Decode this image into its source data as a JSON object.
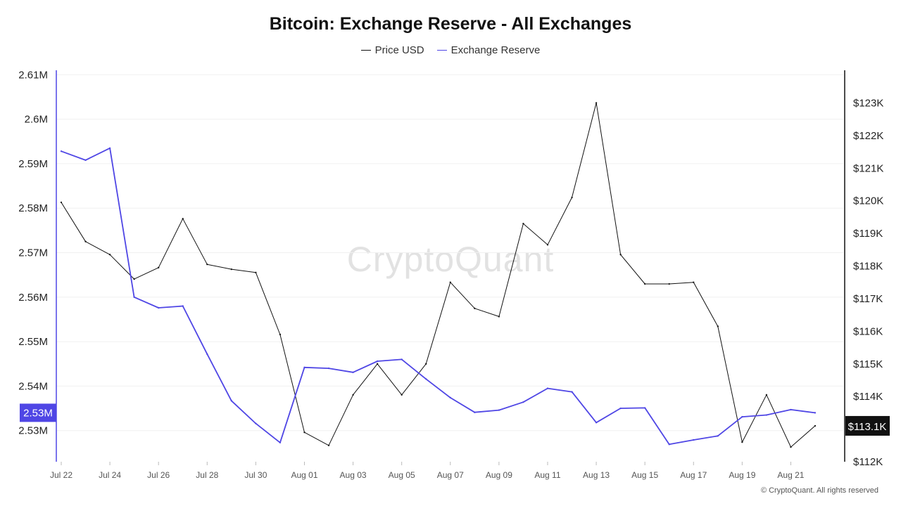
{
  "chart_data": {
    "type": "line",
    "title": "Bitcoin: Exchange Reserve - All Exchanges",
    "x": [
      "Jul 22",
      "Jul 23",
      "Jul 24",
      "Jul 25",
      "Jul 26",
      "Jul 27",
      "Jul 28",
      "Jul 29",
      "Jul 30",
      "Jul 31",
      "Aug 01",
      "Aug 02",
      "Aug 03",
      "Aug 04",
      "Aug 05",
      "Aug 06",
      "Aug 07",
      "Aug 08",
      "Aug 09",
      "Aug 10",
      "Aug 11",
      "Aug 12",
      "Aug 13",
      "Aug 14",
      "Aug 15",
      "Aug 16",
      "Aug 17",
      "Aug 18",
      "Aug 19",
      "Aug 20",
      "Aug 21",
      "Aug 22"
    ],
    "x_tick_labels": [
      "Jul 22",
      "Jul 24",
      "Jul 26",
      "Jul 28",
      "Jul 30",
      "Aug 01",
      "Aug 03",
      "Aug 05",
      "Aug 07",
      "Aug 09",
      "Aug 11",
      "Aug 13",
      "Aug 15",
      "Aug 17",
      "Aug 19",
      "Aug 21"
    ],
    "series": [
      {
        "name": "Price USD",
        "axis": "right",
        "color": "#111111",
        "values": [
          119950,
          118750,
          118350,
          117600,
          117950,
          119450,
          118050,
          117900,
          117800,
          115900,
          112900,
          112500,
          114050,
          115000,
          114050,
          115000,
          117500,
          116700,
          116450,
          119300,
          118650,
          120100,
          123000,
          118350,
          117450,
          117450,
          117500,
          116150,
          112600,
          114050,
          112450,
          113100
        ]
      },
      {
        "name": "Exchange Reserve",
        "axis": "left",
        "color": "#4f46e5",
        "values": [
          2592800,
          2590800,
          2593500,
          2560000,
          2557600,
          2558000,
          2547200,
          2536700,
          2531600,
          2527300,
          2544200,
          2544000,
          2543100,
          2545600,
          2546000,
          2541600,
          2537400,
          2534100,
          2534600,
          2536400,
          2539500,
          2538700,
          2531800,
          2535000,
          2535100,
          2526900,
          2527900,
          2528800,
          2533100,
          2533500,
          2534700,
          2534000
        ]
      }
    ],
    "y_left": {
      "ylim": [
        2523000,
        2611000
      ],
      "ticks": [
        2530000,
        2540000,
        2550000,
        2560000,
        2570000,
        2580000,
        2590000,
        2600000,
        2610000
      ],
      "tick_labels": [
        "2.53M",
        "2.54M",
        "2.55M",
        "2.56M",
        "2.57M",
        "2.58M",
        "2.59M",
        "2.6M",
        "2.61M"
      ]
    },
    "y_right": {
      "ylim": [
        112000,
        124000
      ],
      "ticks": [
        112000,
        113000,
        114000,
        115000,
        116000,
        117000,
        118000,
        119000,
        120000,
        121000,
        122000,
        123000
      ],
      "tick_labels": [
        "$112K",
        "$113K",
        "$114K",
        "$115K",
        "$116K",
        "$117K",
        "$118K",
        "$119K",
        "$120K",
        "$121K",
        "$122K",
        "$123K"
      ]
    },
    "current_left_label": "2.53M",
    "current_right_label": "$113.1K",
    "legend_position": "top-center",
    "grid": true
  },
  "watermark": "CryptoQuant",
  "copyright": "© CryptoQuant. All rights reserved"
}
